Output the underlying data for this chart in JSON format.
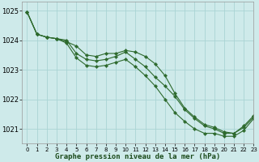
{
  "title": "Graphe pression niveau de la mer (hPa)",
  "bg_color": "#ceeaea",
  "grid_color": "#aad4d4",
  "line_color": "#2d6a2d",
  "marker_color": "#2d6a2d",
  "xlim": [
    -0.5,
    23
  ],
  "ylim": [
    1020.5,
    1025.3
  ],
  "yticks": [
    1021,
    1022,
    1023,
    1024,
    1025
  ],
  "xticks": [
    0,
    1,
    2,
    3,
    4,
    5,
    6,
    7,
    8,
    9,
    10,
    11,
    12,
    13,
    14,
    15,
    16,
    17,
    18,
    19,
    20,
    21,
    22,
    23
  ],
  "series": [
    [
      1024.95,
      1024.2,
      1024.1,
      1024.05,
      1024.0,
      1023.55,
      1023.35,
      1023.3,
      1023.35,
      1023.45,
      1023.6,
      1023.35,
      1023.1,
      1022.75,
      1022.45,
      1022.1,
      1021.65,
      1021.35,
      1021.1,
      1021.0,
      1020.85,
      1020.85,
      1021.05,
      1021.4
    ],
    [
      1024.95,
      1024.2,
      1024.1,
      1024.05,
      1023.95,
      1023.8,
      1023.5,
      1023.45,
      1023.55,
      1023.55,
      1023.65,
      1023.6,
      1023.45,
      1023.2,
      1022.8,
      1022.2,
      1021.7,
      1021.4,
      1021.15,
      1021.05,
      1020.9,
      1020.85,
      1021.1,
      1021.45
    ],
    [
      1024.95,
      1024.2,
      1024.1,
      1024.05,
      1023.9,
      1023.4,
      1023.15,
      1023.1,
      1023.15,
      1023.25,
      1023.35,
      1023.1,
      1022.8,
      1022.45,
      1022.0,
      1021.55,
      1021.25,
      1021.0,
      1020.85,
      1020.85,
      1020.75,
      1020.75,
      1020.95,
      1021.35
    ]
  ],
  "figsize": [
    3.2,
    2.0
  ],
  "dpi": 100,
  "xlabel_fontsize": 6.5,
  "ytick_fontsize": 6,
  "xtick_fontsize": 5,
  "linewidth": 0.8,
  "markersize": 2.2
}
